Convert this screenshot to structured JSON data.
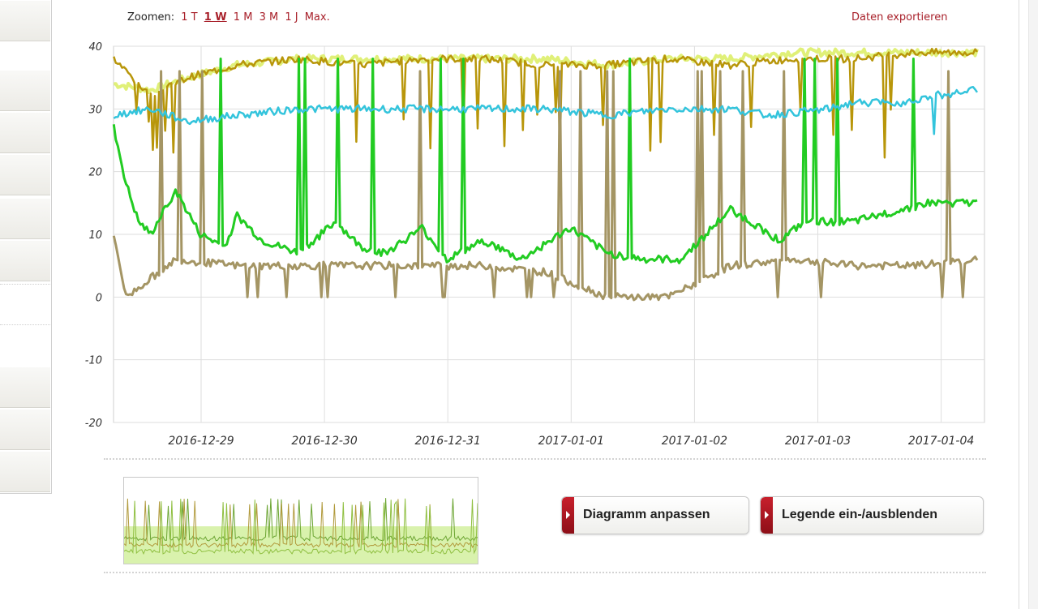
{
  "toolbar": {
    "zoom_label": "Zoomen:",
    "zoom_options": [
      "1 T",
      "1 W",
      "1 M",
      "3 M",
      "1 J",
      "Max."
    ],
    "active_zoom": "1 W",
    "export_label": "Daten exportieren"
  },
  "buttons": {
    "adjust_label": "Diagramm anpassen",
    "legend_label": "Legende ein-/ausblenden"
  },
  "colors": {
    "accent": "#a8202a",
    "green": "#22cc22",
    "cyan": "#33c4dc",
    "olive": "#a49564",
    "gold": "#b8960a",
    "yellow": "#e0f078",
    "dark_brown": "#7a5a1c"
  },
  "chart_data": {
    "type": "line",
    "ylim": [
      -20,
      40
    ],
    "yticks": [
      "40",
      "30",
      "20",
      "10",
      "0",
      "-10",
      "-20"
    ],
    "xticks": [
      "2016-12-29",
      "2016-12-30",
      "2016-12-31",
      "2017-01-01",
      "2017-01-02",
      "2017-01-03",
      "2017-01-04"
    ],
    "xlim": [
      "2016-12-28 07:00",
      "2017-01-04 08:00"
    ],
    "grid": true,
    "series": [
      {
        "color": "#33c4dc",
        "values": [
          [
            0.0,
            29
          ],
          [
            0.3,
            30
          ],
          [
            0.6,
            28
          ],
          [
            1.0,
            29
          ],
          [
            1.5,
            30
          ],
          [
            2.0,
            30
          ],
          [
            2.5,
            30
          ],
          [
            3.0,
            30
          ],
          [
            3.5,
            30
          ],
          [
            4.0,
            29
          ],
          [
            4.5,
            30
          ],
          [
            5.0,
            30
          ],
          [
            5.3,
            29
          ],
          [
            5.8,
            30
          ],
          [
            6.0,
            31
          ],
          [
            6.4,
            31
          ],
          [
            6.6,
            32
          ],
          [
            7.0,
            33
          ]
        ]
      },
      {
        "color": "#22cc22",
        "values": [
          [
            0.0,
            27
          ],
          [
            0.1,
            18
          ],
          [
            0.2,
            12
          ],
          [
            0.3,
            10
          ],
          [
            0.5,
            17
          ],
          [
            0.7,
            10
          ],
          [
            0.9,
            8
          ],
          [
            1.0,
            13
          ],
          [
            1.2,
            9
          ],
          [
            1.5,
            7
          ],
          [
            1.8,
            12
          ],
          [
            2.0,
            8
          ],
          [
            2.2,
            7
          ],
          [
            2.5,
            11
          ],
          [
            2.7,
            6
          ],
          [
            3.0,
            9
          ],
          [
            3.3,
            6
          ],
          [
            3.7,
            11
          ],
          [
            4.0,
            7
          ],
          [
            4.3,
            6
          ],
          [
            4.6,
            6
          ],
          [
            5.0,
            14
          ],
          [
            5.4,
            9
          ],
          [
            5.6,
            12
          ],
          [
            6.0,
            12
          ],
          [
            6.6,
            15
          ],
          [
            7.0,
            15
          ]
        ]
      },
      {
        "color": "#a49564",
        "values": [
          [
            0.0,
            10
          ],
          [
            0.1,
            0
          ],
          [
            0.5,
            6
          ],
          [
            1.0,
            5
          ],
          [
            1.5,
            5
          ],
          [
            2.0,
            5
          ],
          [
            2.5,
            5
          ],
          [
            3.0,
            5
          ],
          [
            3.5,
            4
          ],
          [
            4.0,
            0
          ],
          [
            4.5,
            0
          ],
          [
            5.0,
            5
          ],
          [
            5.5,
            6
          ],
          [
            6.0,
            5
          ],
          [
            6.5,
            5
          ],
          [
            7.0,
            6
          ]
        ]
      },
      {
        "color": "#b8960a",
        "values": [
          [
            0.0,
            38
          ],
          [
            0.3,
            32
          ],
          [
            0.6,
            35
          ],
          [
            1.0,
            37
          ],
          [
            1.5,
            38
          ],
          [
            2.0,
            37
          ],
          [
            2.5,
            38
          ],
          [
            3.0,
            38
          ],
          [
            3.5,
            37
          ],
          [
            4.0,
            37
          ],
          [
            4.5,
            38
          ],
          [
            5.0,
            37
          ],
          [
            5.5,
            38
          ],
          [
            6.0,
            38
          ],
          [
            6.5,
            39
          ],
          [
            7.0,
            39
          ]
        ]
      },
      {
        "color": "#e0f078",
        "values": [
          [
            0.0,
            34
          ],
          [
            0.3,
            33
          ],
          [
            0.6,
            35
          ],
          [
            1.0,
            37
          ],
          [
            1.5,
            38
          ],
          [
            2.0,
            38
          ],
          [
            2.5,
            38
          ],
          [
            3.0,
            38
          ],
          [
            3.5,
            38
          ],
          [
            4.0,
            37
          ],
          [
            4.5,
            38
          ],
          [
            5.0,
            38
          ],
          [
            5.5,
            39
          ],
          [
            6.0,
            39
          ],
          [
            6.5,
            39
          ],
          [
            7.0,
            39
          ]
        ]
      }
    ]
  }
}
